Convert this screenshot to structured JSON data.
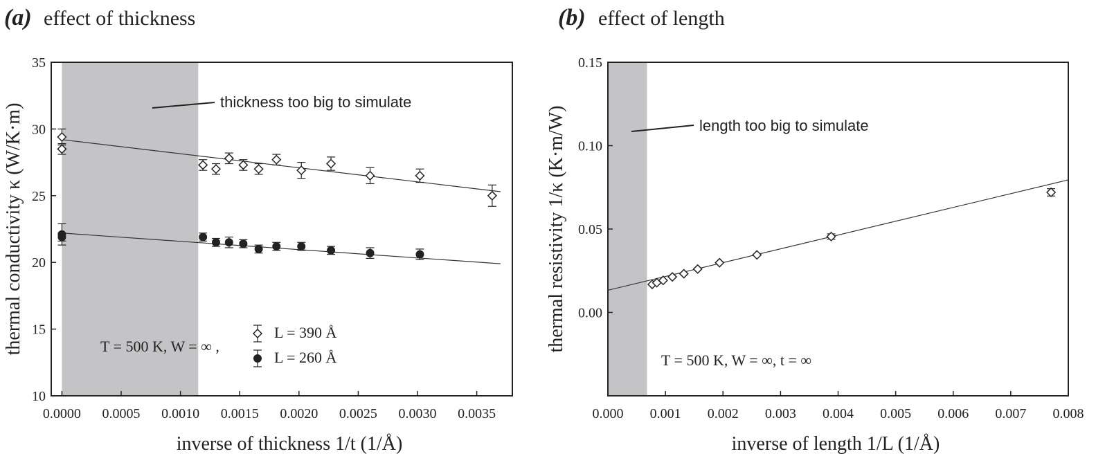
{
  "chart_data": [
    {
      "type": "scatter",
      "panel": "(a)",
      "title": "effect of thickness",
      "xlabel": "inverse of thickness 1/t (1/Å)",
      "ylabel": "thermal conductivity κ (W/K·m)",
      "xlim": [
        -9e-05,
        0.0038
      ],
      "ylim": [
        10,
        35
      ],
      "xticks": [
        0.0,
        0.0005,
        0.001,
        0.0015,
        0.002,
        0.0025,
        0.003,
        0.0035
      ],
      "xtick_labels": [
        "0.0000",
        "0.0005",
        "0.0010",
        "0.0015",
        "0.0020",
        "0.0025",
        "0.0030",
        "0.0035"
      ],
      "yticks": [
        10,
        15,
        20,
        25,
        30,
        35
      ],
      "ytick_labels": [
        "10",
        "15",
        "20",
        "25",
        "30",
        "35"
      ],
      "shaded_region": {
        "x0": 0.0,
        "x1": 0.00115,
        "annotation": "thickness too big to simulate"
      },
      "condition_text": "T = 500 K, W =  ∞ ,",
      "series": [
        {
          "name": "L = 390 Å",
          "marker": "open-diamond",
          "x": [
            0.0,
            0.0,
            0.00119,
            0.0013,
            0.00141,
            0.00153,
            0.00166,
            0.00181,
            0.00202,
            0.00227,
            0.0026,
            0.00302,
            0.00363
          ],
          "y": [
            29.4,
            28.5,
            27.3,
            27.0,
            27.8,
            27.3,
            27.0,
            27.7,
            26.9,
            27.4,
            26.5,
            26.5,
            25.0
          ],
          "err": [
            0.6,
            0.4,
            0.4,
            0.4,
            0.4,
            0.4,
            0.4,
            0.4,
            0.6,
            0.5,
            0.6,
            0.5,
            0.8
          ],
          "fit": {
            "x": [
              0.0,
              0.0037
            ],
            "y": [
              29.2,
              25.3
            ]
          }
        },
        {
          "name": "L = 260 Å",
          "marker": "filled-circle",
          "x": [
            0.0,
            0.0,
            0.00119,
            0.0013,
            0.00141,
            0.00153,
            0.00166,
            0.00181,
            0.00202,
            0.00227,
            0.0026,
            0.00302
          ],
          "y": [
            22.1,
            21.9,
            21.9,
            21.5,
            21.5,
            21.4,
            21.0,
            21.2,
            21.2,
            20.9,
            20.7,
            20.6
          ],
          "err": [
            0.8,
            0.3,
            0.3,
            0.3,
            0.4,
            0.3,
            0.3,
            0.3,
            0.3,
            0.3,
            0.4,
            0.4
          ],
          "fit": {
            "x": [
              0.0,
              0.0037
            ],
            "y": [
              22.2,
              19.9
            ]
          }
        }
      ]
    },
    {
      "type": "scatter",
      "panel": "(b)",
      "title": "effect of length",
      "xlabel": "inverse of length 1/L (1/Å)",
      "ylabel": "thermal resistivity 1/κ (K·m/W)",
      "xlim": [
        0.0,
        0.008
      ],
      "ylim": [
        -0.05,
        0.15
      ],
      "xticks": [
        0.0,
        0.001,
        0.002,
        0.003,
        0.004,
        0.005,
        0.006,
        0.007,
        0.008
      ],
      "xtick_labels": [
        "0.000",
        "0.001",
        "0.002",
        "0.003",
        "0.004",
        "0.005",
        "0.006",
        "0.007",
        "0.008"
      ],
      "yticks": [
        0.0,
        0.05,
        0.1,
        0.15
      ],
      "ytick_labels": [
        "0.00",
        "0.05",
        "0.10",
        "0.15"
      ],
      "shaded_region": {
        "x0": 0.0,
        "x1": 0.00068,
        "annotation": "length too big to simulate"
      },
      "condition_text": "T = 500 K, W =  ∞, t = ∞",
      "series": [
        {
          "name": "1/κ",
          "marker": "open-diamond",
          "x": [
            0.00077,
            0.00085,
            0.00096,
            0.00112,
            0.00132,
            0.00156,
            0.00194,
            0.00259,
            0.00388,
            0.0077
          ],
          "y": [
            0.0168,
            0.0178,
            0.0192,
            0.0213,
            0.0232,
            0.026,
            0.0298,
            0.0345,
            0.0455,
            0.072
          ],
          "err": [
            0.0,
            0.0,
            0.0,
            0.0,
            0.0,
            0.0,
            0.0,
            0.0,
            0.0016,
            0.0022
          ],
          "fit": {
            "x": [
              0.0,
              0.008
            ],
            "y": [
              0.0133,
              0.0795
            ]
          }
        }
      ]
    }
  ]
}
